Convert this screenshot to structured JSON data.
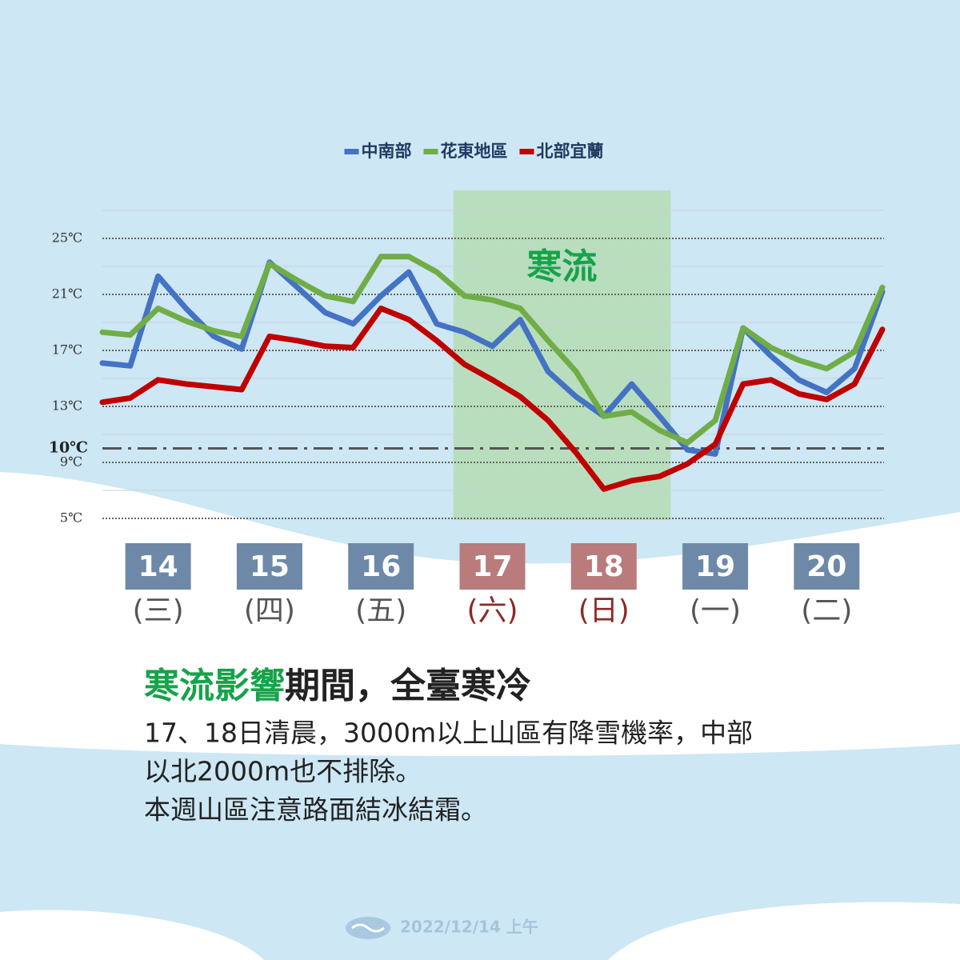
{
  "chart_data": {
    "type": "line",
    "legend": "top",
    "xlim": [
      13.5,
      20.5
    ],
    "ylim": [
      5,
      27
    ],
    "yticks": [
      {
        "value": 5,
        "label": "5℃"
      },
      {
        "value": 9,
        "label": "9℃"
      },
      {
        "value": 13,
        "label": "13℃"
      },
      {
        "value": 17,
        "label": "17℃"
      },
      {
        "value": 21,
        "label": "21℃"
      },
      {
        "value": 25,
        "label": "25℃"
      }
    ],
    "minor_yticks": [
      7,
      11,
      15,
      19,
      23,
      27
    ],
    "reference_line": {
      "value": 10,
      "label": "10℃"
    },
    "shaded_region": {
      "range": [
        16.65,
        18.6
      ],
      "label": "寒流",
      "color": "#b5dcb4"
    },
    "days": [
      {
        "value": 14,
        "date": "14",
        "weekday": "(三)",
        "color": "#6e89a8",
        "text_color": "#555555"
      },
      {
        "value": 15,
        "date": "15",
        "weekday": "(四)",
        "color": "#6e89a8",
        "text_color": "#555555"
      },
      {
        "value": 16,
        "date": "16",
        "weekday": "(五)",
        "color": "#6e89a8",
        "text_color": "#555555"
      },
      {
        "value": 17,
        "date": "17",
        "weekday": "(六)",
        "color": "#b97b7b",
        "text_color": "#8b2a26"
      },
      {
        "value": 18,
        "date": "18",
        "weekday": "(日)",
        "color": "#b97b7b",
        "text_color": "#8b2a26"
      },
      {
        "value": 19,
        "date": "19",
        "weekday": "(一)",
        "color": "#6e89a8",
        "text_color": "#555555"
      },
      {
        "value": 20,
        "date": "20",
        "weekday": "(二)",
        "color": "#6e89a8",
        "text_color": "#555555"
      }
    ],
    "x": [
      13.5,
      13.75,
      14,
      14.25,
      14.5,
      14.75,
      15,
      15.25,
      15.5,
      15.75,
      16,
      16.25,
      16.5,
      16.75,
      17,
      17.25,
      17.5,
      17.75,
      18,
      18.25,
      18.5,
      18.75,
      19,
      19.25,
      19.5,
      19.75,
      20,
      20.25,
      20.5
    ],
    "series": [
      {
        "name": "中南部",
        "color": "#4472c4",
        "values": [
          16.1,
          15.9,
          22.3,
          20.0,
          18.0,
          17.1,
          23.3,
          21.5,
          19.7,
          18.9,
          20.9,
          22.6,
          18.9,
          18.3,
          17.3,
          19.2,
          15.5,
          13.7,
          12.3,
          14.6,
          12.3,
          9.9,
          9.6,
          18.6,
          16.6,
          14.9,
          14.0,
          15.7,
          21.2
        ]
      },
      {
        "name": "花東地區",
        "color": "#70ad47",
        "values": [
          18.3,
          18.1,
          20.0,
          19.1,
          18.4,
          18.0,
          23.2,
          22.0,
          20.9,
          20.5,
          23.7,
          23.7,
          22.6,
          20.9,
          20.6,
          20.0,
          17.7,
          15.5,
          12.3,
          12.6,
          11.3,
          10.4,
          12.0,
          18.6,
          17.2,
          16.3,
          15.7,
          16.9,
          21.5
        ]
      },
      {
        "name": "北部宜蘭",
        "color": "#c00000",
        "values": [
          13.3,
          13.6,
          14.9,
          14.6,
          14.4,
          14.2,
          18.0,
          17.7,
          17.3,
          17.2,
          20.0,
          19.2,
          17.7,
          16.0,
          14.9,
          13.7,
          12.0,
          9.7,
          7.1,
          7.7,
          8.0,
          8.9,
          10.3,
          14.6,
          14.9,
          13.9,
          13.5,
          14.6,
          18.5
        ]
      }
    ]
  },
  "text": {
    "headline_highlight": "寒流影響",
    "headline_rest": "期間，全臺寒冷",
    "lines": [
      "17、18日清晨，3000m以上山區有降雪機率，中部",
      "以北2000m也不排除。",
      "本週山區注意路面結冰結霜。"
    ]
  },
  "footer": {
    "date": "2022/12/14 上午"
  }
}
